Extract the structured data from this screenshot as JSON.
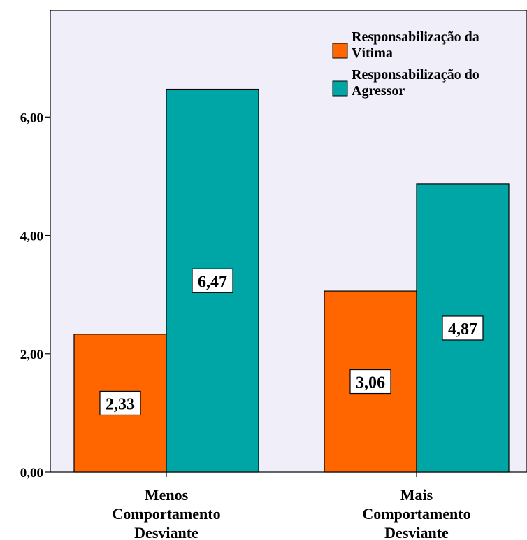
{
  "chart_data": {
    "type": "bar",
    "categories": [
      [
        "Menos",
        "Comportamento",
        "Desviante"
      ],
      [
        "Mais",
        "Comportamento",
        "Desviante"
      ]
    ],
    "series": [
      {
        "name": [
          "Responsabilização da",
          "Vítima"
        ],
        "values": [
          2.33,
          3.06
        ],
        "color": "#ff6600"
      },
      {
        "name": [
          "Responsabilização do",
          "Agressor"
        ],
        "values": [
          6.47,
          4.87
        ],
        "color": "#00a6a6"
      }
    ],
    "data_labels": [
      [
        "2,33",
        "3,06"
      ],
      [
        "6,47",
        "4,87"
      ]
    ],
    "y_ticks": [
      0,
      2,
      4,
      6
    ],
    "y_tick_labels": [
      "0,00",
      "2,00",
      "4,00",
      "6,00"
    ],
    "ylim": [
      0,
      7.8
    ],
    "grid": false,
    "legend_position": "top-right",
    "plot_background": "#f0eef8",
    "title": "",
    "xlabel": "",
    "ylabel": ""
  }
}
